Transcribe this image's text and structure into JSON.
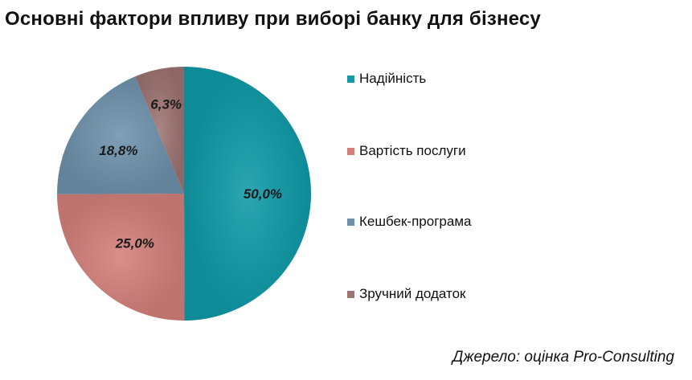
{
  "title": "Основні фактори впливу при виборі банку для бізнесу",
  "source": "Джерело: оцінка Pro-Consulting",
  "chart_data": {
    "type": "pie",
    "title": "Основні фактори впливу при виборі банку для бізнесу",
    "legend_position": "right",
    "categories": [
      "Надійність",
      "Вартість послуги",
      "Кешбек-програма",
      "Зручний додаток"
    ],
    "values": [
      50.0,
      25.0,
      18.8,
      6.3
    ],
    "labels": [
      "50,0%",
      "25,0%",
      "18,8%",
      "6,3%"
    ],
    "colors": [
      "#0E9AA7",
      "#D4807A",
      "#6E92AC",
      "#9E7472"
    ]
  }
}
